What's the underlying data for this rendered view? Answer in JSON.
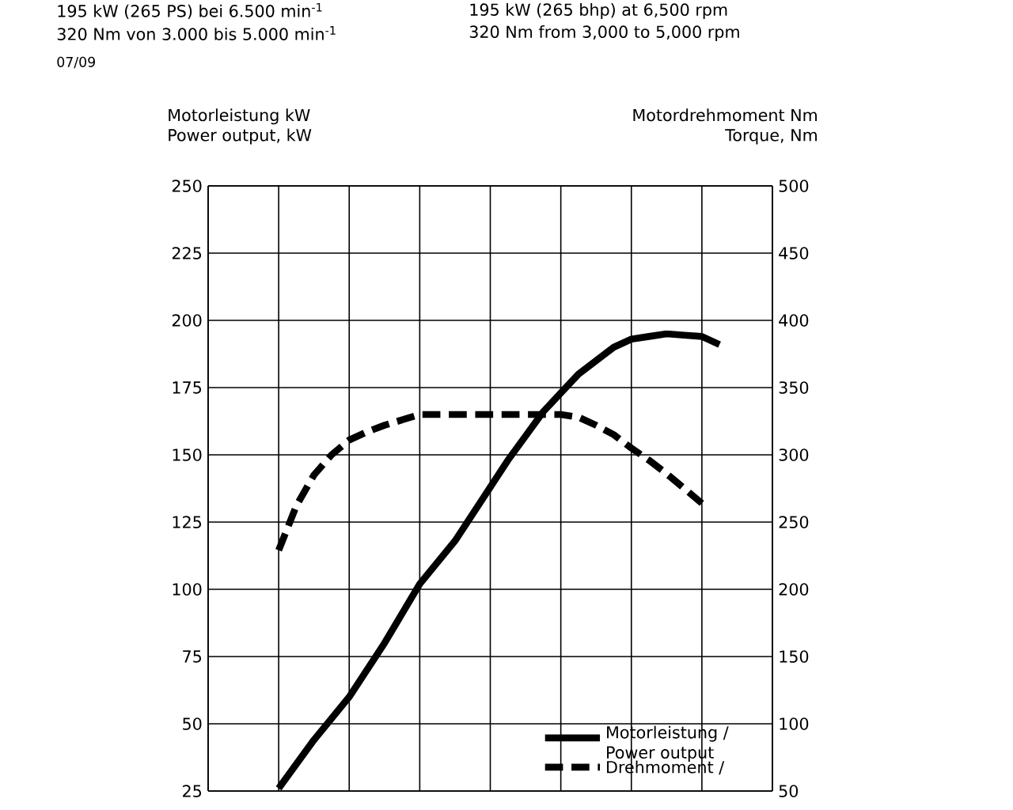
{
  "chart_data": {
    "type": "line",
    "annotations": [
      "195 kW (265 PS) bei 6.500 min$^{-1}$",
      "320 Nm von 3.000 bis 5.000 min$^{-1}$",
      "07/09",
      "195 kW (265 bhp) at 6,500 rpm",
      "320 Nm from 3,000 to 5,000 rpm"
    ],
    "ylabel": "Motorleistung kW Power output, kW",
    "y2label": "Motordrehmoment Nm Torque, Nm",
    "categories": [
      null,
      null,
      null,
      null,
      null,
      null,
      null,
      null,
      null,
      null,
      null,
      null,
      null,
      null,
      null,
      null,
      null,
      null,
      null,
      null,
      null,
      null,
      null,
      null,
      null,
      null,
      null,
      null,
      null,
      null,
      null,
      null,
      null
    ],
    "ylim": [
      25,
      250
    ],
    "yticks": [
      25,
      50,
      75,
      100,
      125,
      150,
      175,
      200,
      225,
      250
    ],
    "y2lim": [
      50,
      500
    ],
    "y2ticks": [
      50,
      100,
      150,
      200,
      250,
      300,
      350,
      400,
      450,
      500
    ],
    "grid": true,
    "legend": "bottom right",
    "series": [
      {
        "name": "Motorleistung / Power output",
        "color": "#000000",
        "line_style": "solid",
        "values": [
          null,
          null,
          null,
          null,
          26,
          35,
          44,
          52,
          60,
          70,
          80,
          91,
          102,
          110,
          118,
          128,
          138,
          148,
          157,
          166,
          173,
          180,
          185,
          190,
          193,
          194,
          195,
          194.5,
          194,
          191,
          null,
          null,
          null
        ]
      },
      {
        "name": "Drehmoment /",
        "color": "#000000",
        "line_style": "dashed",
        "axis": "y2",
        "values": [
          null,
          null,
          null,
          null,
          229,
          262,
          285,
          300,
          311,
          317,
          322,
          326,
          330,
          330,
          330,
          330,
          330,
          330,
          330,
          330,
          330,
          328,
          322,
          315,
          305,
          296,
          286,
          275,
          264,
          null,
          null,
          null,
          null
        ]
      }
    ]
  }
}
